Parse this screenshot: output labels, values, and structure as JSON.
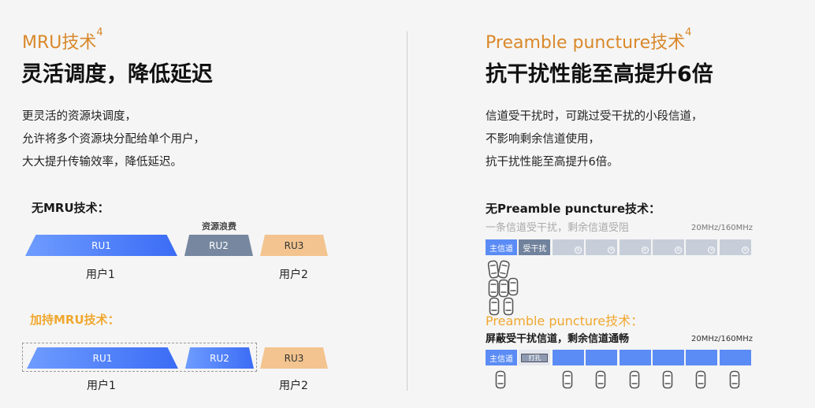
{
  "left": {
    "title": "MRU技术",
    "sup": "4",
    "heading": "灵活调度，降低延迟",
    "body": [
      "更灵活的资源块调度，",
      "允许将多个资源块分配给单个用户，",
      "大大提升传输效率，降低延迟。"
    ],
    "without": {
      "label": "无MRU技术：",
      "waste": "资源浪费",
      "blocks": [
        "RU1",
        "RU2",
        "RU3"
      ],
      "users": [
        "用户1",
        "用户2"
      ]
    },
    "with": {
      "label": "加持MRU技术：",
      "blocks": [
        "RU1",
        "RU2",
        "RU3"
      ],
      "users": [
        "用户1",
        "用户2"
      ]
    }
  },
  "right": {
    "title": "Preamble puncture技术",
    "sup": "4",
    "heading": "抗干扰性能至高提升6倍",
    "body": [
      "信道受干扰时，可跳过受干扰的小段信道，",
      "不影响剩余信道使用，",
      "抗干扰性能至高提升6倍。"
    ],
    "without": {
      "label": "无Preamble puncture技术：",
      "desc": "一条信道受干扰，剩余信道受阻",
      "bw": "20MHz/160MHz",
      "main": "主信道",
      "interfered": "受干扰"
    },
    "with": {
      "label": "Preamble puncture技术：",
      "desc": "屏蔽受干扰信道，剩余信道通畅",
      "bw": "20MHz/160MHz",
      "main": "主信道",
      "punctured": "打孔"
    }
  },
  "colors": {
    "accent": "#d9882a",
    "blue": "#3b6cf5",
    "gray": "#76879f",
    "peach": "#f3c48f"
  }
}
